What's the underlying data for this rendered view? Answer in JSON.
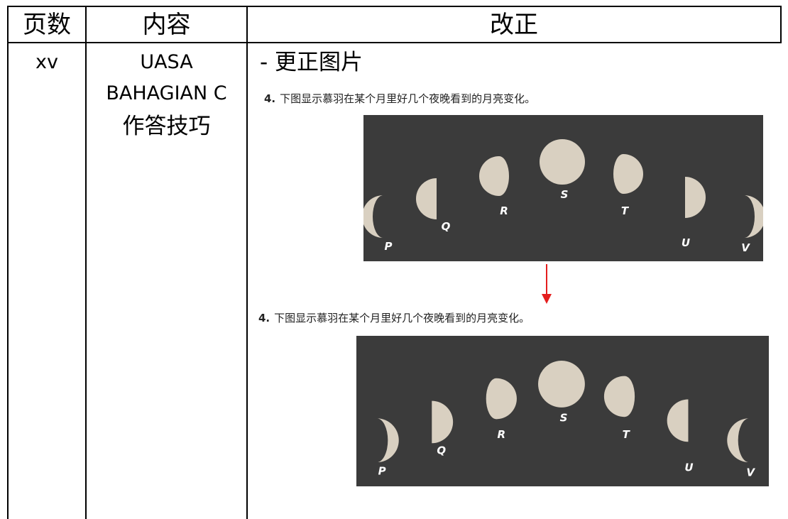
{
  "table": {
    "header": [
      "页数",
      "内容",
      "改正"
    ],
    "rows": [
      {
        "page": "xv",
        "content": [
          "UASA",
          "BAHAGIAN C",
          "作答技巧"
        ],
        "correction": {
          "note": "- 更正图片",
          "before": {
            "number": "4.",
            "question": "下图显示慕羽在某个月里好几个夜晚看到的月亮变化。",
            "labels": [
              "P",
              "Q",
              "R",
              "S",
              "T",
              "U",
              "V"
            ]
          },
          "after": {
            "number": "4.",
            "question": "下图显示慕羽在某个月里好几个夜晚看到的月亮变化。",
            "labels": [
              "P",
              "Q",
              "R",
              "S",
              "T",
              "U",
              "V"
            ]
          }
        }
      }
    ]
  }
}
